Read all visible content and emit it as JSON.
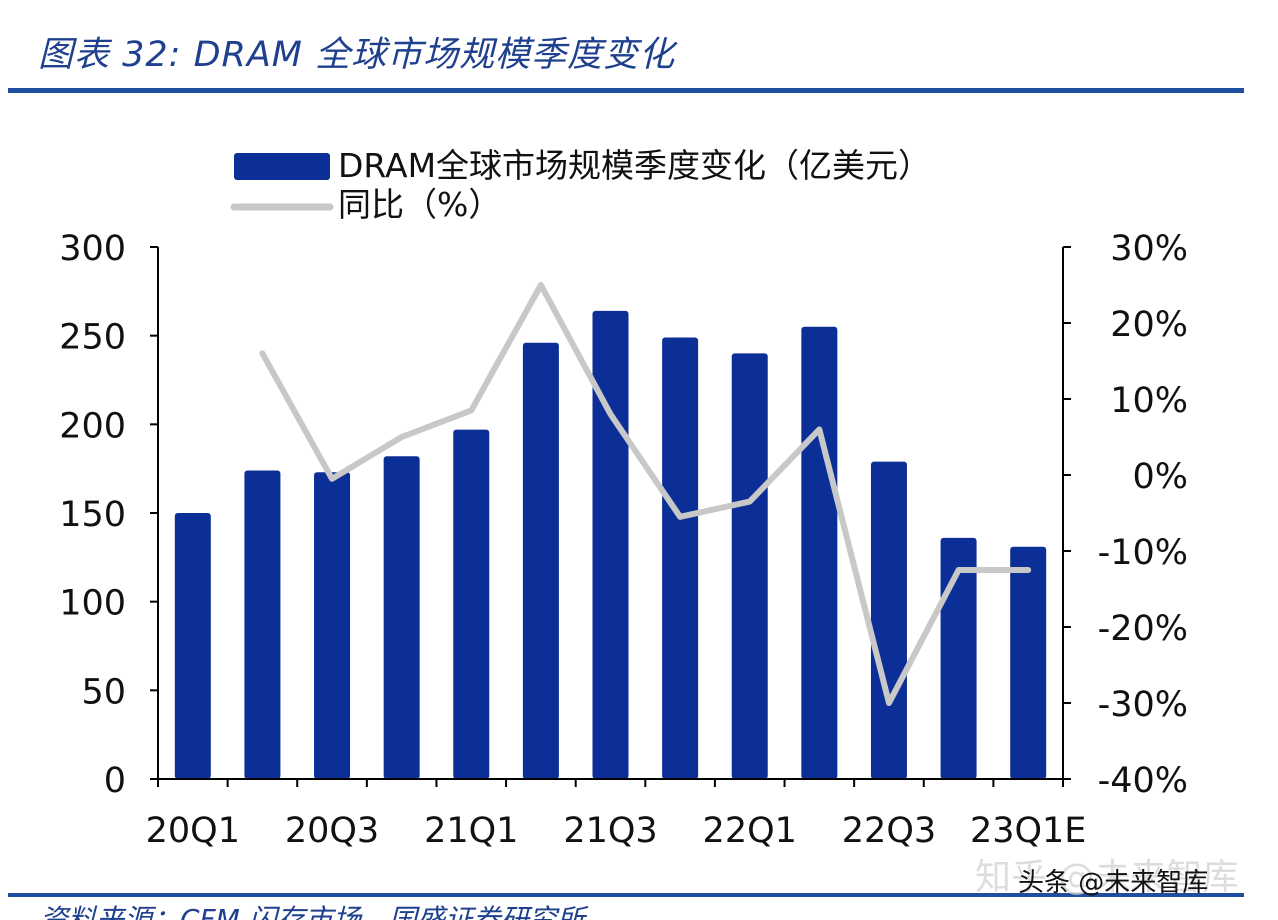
{
  "figure_title": "图表 32:  DRAM 全球市场规模季度变化",
  "source_note": "资料来源：CFM 闪存市场，国盛证券研究所",
  "watermark": "知乎 @未来智库",
  "watermark_sub": "头条 @未来智库",
  "colors": {
    "bar": "#0b2f96",
    "line": "#c8c8c8",
    "axis": "#000000",
    "title": "#1f3f8f",
    "rule": "#1f4ea0"
  },
  "chart_data": {
    "type": "bar",
    "categories": [
      "20Q1",
      "20Q2",
      "20Q3",
      "20Q4",
      "21Q1",
      "21Q2",
      "21Q3",
      "21Q4",
      "22Q1",
      "22Q2",
      "22Q3",
      "22Q4",
      "23Q1E"
    ],
    "x_tick_labels": [
      "20Q1",
      "20Q3",
      "21Q1",
      "21Q3",
      "22Q1",
      "22Q3",
      "23Q1E"
    ],
    "series": [
      {
        "name": "DRAM全球市场规模季度变化（亿美元）",
        "type": "bar",
        "axis": "left",
        "values": [
          150,
          174,
          173,
          182,
          197,
          246,
          264,
          249,
          240,
          255,
          179,
          136,
          131
        ]
      },
      {
        "name": "同比（%）",
        "type": "line",
        "axis": "right",
        "values": [
          null,
          16,
          -0.5,
          5,
          8.5,
          25,
          8,
          -5.5,
          -3.5,
          6,
          -30,
          -12.5,
          -12.5
        ]
      }
    ],
    "y_left": {
      "min": 0,
      "max": 300,
      "ticks": [
        0,
        50,
        100,
        150,
        200,
        250,
        300
      ],
      "tick_labels": [
        "0",
        "50",
        "100",
        "150",
        "200",
        "250",
        "300"
      ]
    },
    "y_right": {
      "min": -40,
      "max": 30,
      "ticks": [
        -40,
        -30,
        -20,
        -10,
        0,
        10,
        20,
        30
      ],
      "tick_labels": [
        "-40%",
        "-30%",
        "-20%",
        "-10%",
        "0%",
        "10%",
        "20%",
        "30%"
      ]
    },
    "legend": {
      "placement": "top",
      "entries": [
        "DRAM全球市场规模季度变化（亿美元）",
        "同比（%）"
      ]
    },
    "grid": false
  }
}
